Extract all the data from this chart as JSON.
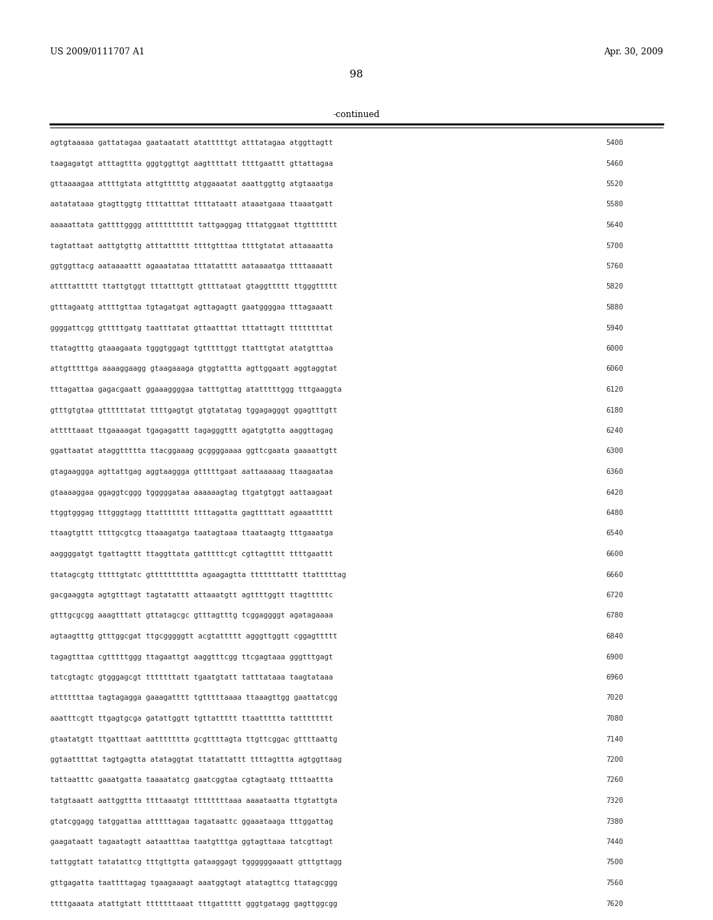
{
  "header_left": "US 2009/0111707 A1",
  "header_right": "Apr. 30, 2009",
  "page_number": "98",
  "continued_label": "-continued",
  "background_color": "#ffffff",
  "text_color": "#000000",
  "sequence_lines": [
    [
      "agtgtaaaaa gattatagaa gaataatatt atatttttgt atttatagaa atggttagtt",
      "5400"
    ],
    [
      "taagagatgt atttagttta gggtggttgt aagttttatt ttttgaattt gttattagaa",
      "5460"
    ],
    [
      "gttaaaagaa attttgtata attgtttttg atggaaatat aaattggttg atgtaaatga",
      "5520"
    ],
    [
      "aatatataaa gtagttggtg ttttatttat ttttataatt ataaatgaaa ttaaatgatt",
      "5580"
    ],
    [
      "aaaaattata gattttgggg atttttttttt tattgaggag tttatggaat ttgttttttt",
      "5640"
    ],
    [
      "tagtattaat aattgtgttg atttattttt ttttgtttaa ttttgtatat attaaaatta",
      "5700"
    ],
    [
      "ggtggttacg aataaaattt agaaatataa tttatatttt aataaaatga ttttaaaatt",
      "5760"
    ],
    [
      "attttattttt ttattgtggt tttatttgtt gttttataat gtaggttttt ttgggttttt",
      "5820"
    ],
    [
      "gtttagaatg attttgttaa tgtagatgat agttagagtt gaatggggaa tttagaaatt",
      "5880"
    ],
    [
      "ggggattcgg gtttttgatg taatttatat gttaatttat tttattagtt ttttttttat",
      "5940"
    ],
    [
      "ttatagtttg gtaaagaata tgggtggagt tgtttttggt ttatttgtat atatgtttaa",
      "6000"
    ],
    [
      "attgtttttga aaaaggaagg gtaagaaaga gtggtattta agttggaatt aggtaggtat",
      "6060"
    ],
    [
      "tttagattaa gagacgaatt ggaaaggggaa tatttgttag atatttttggg tttgaaggta",
      "6120"
    ],
    [
      "gtttgtgtaa gttttttatat ttttgagtgt gtgtatatag tggagagggt ggagtttgtt",
      "6180"
    ],
    [
      "atttttaaat ttgaaaagat tgagagattt tagagggttt agatgtgtta aaggttagag",
      "6240"
    ],
    [
      "ggattaatat ataggttttta ttacggaaag gcggggaaaa ggttcgaata gaaaattgtt",
      "6300"
    ],
    [
      "gtagaaggga agttattgag aggtaaggga gtttttgaat aattaaaaag ttaagaataa",
      "6360"
    ],
    [
      "gtaaaaggaa ggaggtcggg tgggggataa aaaaaagtag ttgatgtggt aattaagaat",
      "6420"
    ],
    [
      "ttggtgggag tttgggtagg ttattttttt ttttagatta gagttttatt agaaattttt",
      "6480"
    ],
    [
      "ttaagtgttt ttttgcgtcg ttaaagatga taatagtaaa ttaataagtg tttgaaatga",
      "6540"
    ],
    [
      "aaggggatgt tgattagttt ttaggttata gatttttcgt cgttagtttt ttttgaattt",
      "6600"
    ],
    [
      "ttatagcgtg tttttgtatc gtttttttttta agaagagtta tttttttattt ttatttttag",
      "6660"
    ],
    [
      "gacgaaggta agtgtttagt tagtatattt attaaatgtt agttttggtt ttagtttttc",
      "6720"
    ],
    [
      "gtttgcgcgg aaagtttatt gttatagcgc gtttagtttg tcggaggggt agatagaaaa",
      "6780"
    ],
    [
      "agtaagtttg gtttggcgat ttgcgggggtt acgtattttt agggttggtt cggagttttt",
      "6840"
    ],
    [
      "tagagtttaa cgtttttggg ttagaattgt aaggtttcgg ttcgagtaaa gggtttgagt",
      "6900"
    ],
    [
      "tatcgtagtc gtgggagcgt tttttttatt tgaatgtatt tatttataaa taagtataaa",
      "6960"
    ],
    [
      "atttttttaa tagtagagga gaaagatttt tgtttttaaaa ttaaagttgg gaattatcgg",
      "7020"
    ],
    [
      "aaatttcgtt ttgagtgcga gatattggtt tgttattttt ttaattttta tatttttttt",
      "7080"
    ],
    [
      "gtaatatgtt ttgatttaat aattttttta gcgttttagta ttgttcggac gttttaattg",
      "7140"
    ],
    [
      "ggtaattttat tagtgagtta atataggtat ttatattattt ttttagttta agtggttaag",
      "7200"
    ],
    [
      "tattaatttc gaaatgatta taaaatatcg gaatcggtaa cgtagtaatg ttttaattta",
      "7260"
    ],
    [
      "tatgtaaatt aattggttta ttttaaatgt ttttttttaaa aaaataatta ttgtattgta",
      "7320"
    ],
    [
      "gtatcggagg tatggattaa atttttagaa tagataattc ggaaataaga tttggattag",
      "7380"
    ],
    [
      "gaagataatt tagaatagtt aataatttaa taatgtttga ggtagttaaa tatcgttagt",
      "7440"
    ],
    [
      "tattggtatt tatatattcg tttgttgtta gataaggagt tggggggaaatt gtttgttagg",
      "7500"
    ],
    [
      "gttgagatta taattttagag tgaagaaagt aaatggtagt atatagttcg ttatagcggg",
      "7560"
    ],
    [
      "ttttgaaata atattgtatt tttttttaaat tttgattttt gggtgatagg gagttggcgg",
      "7620"
    ]
  ]
}
